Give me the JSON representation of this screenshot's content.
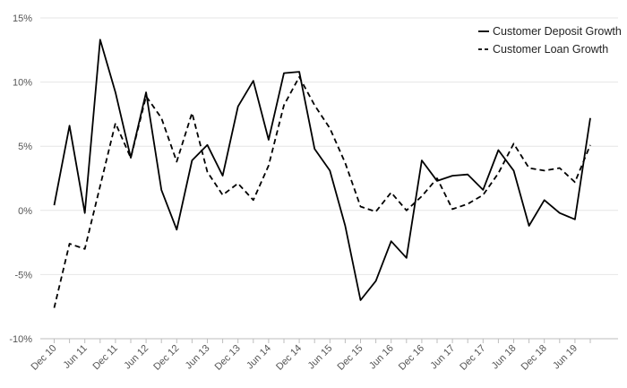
{
  "chart_data": {
    "type": "line",
    "x": [
      "Dec 10",
      "Mar 11",
      "Jun 11",
      "Sep 11",
      "Dec 11",
      "Mar 12",
      "Jun 12",
      "Sep 12",
      "Dec 12",
      "Mar 13",
      "Jun 13",
      "Sep 13",
      "Dec 13",
      "Mar 14",
      "Jun 14",
      "Sep 14",
      "Dec 14",
      "Mar 15",
      "Jun 15",
      "Sep 15",
      "Dec 15",
      "Mar 16",
      "Jun 16",
      "Sep 16",
      "Dec 16",
      "Mar 17",
      "Jun 17",
      "Sep 17",
      "Dec 17",
      "Mar 18",
      "Jun 18",
      "Sep 18",
      "Dec 18",
      "Mar 19",
      "Jun 19",
      "Sep 19"
    ],
    "x_tick_labels": [
      "Dec 10",
      "Jun 11",
      "Dec 11",
      "Jun 12",
      "Dec 12",
      "Jun 13",
      "Dec 13",
      "Jun 14",
      "Dec 14",
      "Jun 15",
      "Dec 15",
      "Jun 16",
      "Dec 16",
      "Jun 17",
      "Dec 17",
      "Jun 18",
      "Dec 18",
      "Jun 19"
    ],
    "y_tick_labels": [
      "15%",
      "10%",
      "5%",
      "0%",
      "-5%",
      "-10%"
    ],
    "y_ticks": [
      15,
      10,
      5,
      0,
      -5,
      -10
    ],
    "ylim": [
      -10,
      15
    ],
    "series": [
      {
        "name": "Customer Deposit Growth",
        "style": "solid",
        "color": "#000000",
        "values": [
          0.4,
          6.6,
          -0.2,
          13.3,
          9.2,
          4.1,
          9.2,
          1.6,
          -1.5,
          3.9,
          5.1,
          2.7,
          8.1,
          10.1,
          5.5,
          10.7,
          10.8,
          4.8,
          3.1,
          -1.2,
          -7.0,
          -5.5,
          -2.4,
          -3.7,
          3.9,
          2.3,
          2.7,
          2.8,
          1.6,
          4.7,
          3.1,
          -1.2,
          0.8,
          -0.2,
          -0.7,
          7.2
        ]
      },
      {
        "name": "Customer Loan Growth",
        "style": "dashed",
        "color": "#000000",
        "values": [
          -7.6,
          -2.6,
          -3.0,
          1.9,
          6.8,
          4.1,
          8.9,
          7.2,
          3.8,
          7.6,
          3.0,
          1.2,
          2.1,
          0.8,
          3.5,
          8.2,
          10.4,
          8.2,
          6.4,
          3.7,
          0.3,
          -0.1,
          1.4,
          0.0,
          1.1,
          2.5,
          0.1,
          0.5,
          1.2,
          2.9,
          5.2,
          3.3,
          3.1,
          3.3,
          2.2,
          5.1
        ]
      }
    ],
    "grid": true,
    "legend_position": "top-right"
  }
}
